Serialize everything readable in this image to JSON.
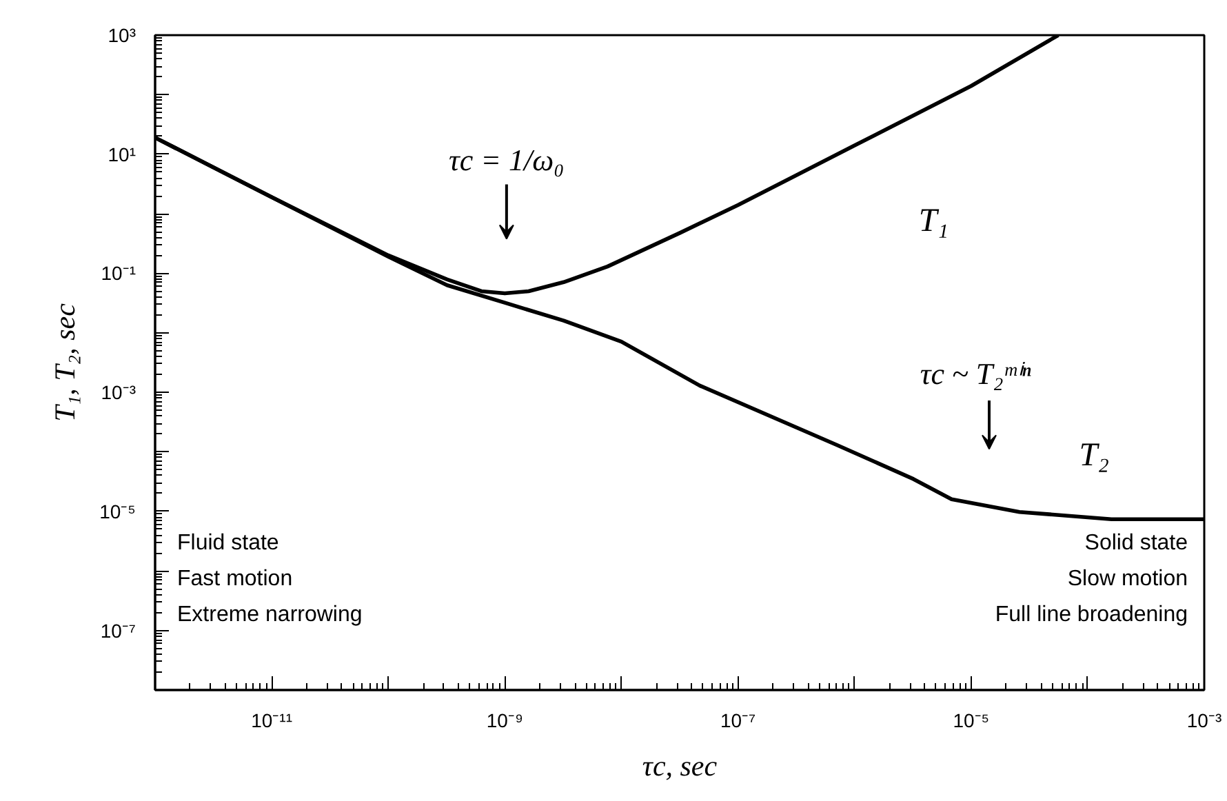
{
  "chart_data": {
    "type": "line",
    "xlabel": "τc, sec",
    "ylabel": "T₁, T₂, sec",
    "log": "xy",
    "grid": false,
    "marker": "none",
    "line_style": "solid",
    "xlim": [
      1e-12,
      0.001
    ],
    "ylim": [
      1e-08,
      1000
    ],
    "xticks": [
      {
        "value": 1e-12,
        "label": null
      },
      {
        "value": 1e-11,
        "label": "10⁻¹¹"
      },
      {
        "value": 1e-10,
        "label": null
      },
      {
        "value": 1e-09,
        "label": "10⁻⁹"
      },
      {
        "value": 1e-08,
        "label": null
      },
      {
        "value": 1e-07,
        "label": "10⁻⁷"
      },
      {
        "value": 1e-06,
        "label": null
      },
      {
        "value": 1e-05,
        "label": "10⁻⁵"
      },
      {
        "value": 0.0001,
        "label": null
      },
      {
        "value": 0.001,
        "label": "10⁻³"
      }
    ],
    "yticks": [
      {
        "value": 1e-08,
        "label": null
      },
      {
        "value": 1e-07,
        "label": "10⁻⁷"
      },
      {
        "value": 1e-06,
        "label": null
      },
      {
        "value": 1e-05,
        "label": "10⁻⁵"
      },
      {
        "value": 0.0001,
        "label": null
      },
      {
        "value": 0.001,
        "label": "10⁻³"
      },
      {
        "value": 0.01,
        "label": null
      },
      {
        "value": 0.1,
        "label": "10⁻¹"
      },
      {
        "value": 1,
        "label": null
      },
      {
        "value": 10,
        "label": "10¹"
      },
      {
        "value": 100,
        "label": null
      },
      {
        "value": 1000,
        "label": "10³"
      }
    ],
    "series": [
      {
        "color": "#000000",
        "x": [
          1e-12,
          1e-11,
          1e-10,
          3.2e-10,
          6.3e-10,
          1e-09,
          1.6e-09,
          3.2e-09,
          7.6e-09,
          3.2e-08,
          1e-07,
          1e-06,
          1e-05,
          5.6e-05
        ],
        "values": [
          19,
          1.9,
          0.2,
          0.079,
          0.05,
          0.046,
          0.05,
          0.071,
          0.13,
          0.48,
          1.4,
          14,
          140,
          1000
        ]
      },
      {
        "color": "#000000",
        "x": [
          1e-12,
          1e-11,
          1e-10,
          3.2e-10,
          1e-09,
          3.2e-09,
          1e-08,
          4.7e-08,
          7.1e-07,
          3.2e-06,
          6.8e-06,
          2.6e-05,
          0.00016,
          0.001
        ],
        "values": [
          19,
          1.9,
          0.19,
          0.063,
          0.032,
          0.016,
          0.0071,
          0.0013,
          0.00013,
          3.5e-05,
          1.6e-05,
          9.8e-06,
          7.4e-06,
          7.4e-06
        ]
      }
    ],
    "annotations": [
      "τc = 1/ω₀",
      "τc ~ T₂ᵐⁱⁿ",
      "T₁",
      "T₂",
      "Fluid state\nFast motion\nExtreme narrowing",
      "Solid state\nSlow motion\nFull line broadening"
    ]
  }
}
